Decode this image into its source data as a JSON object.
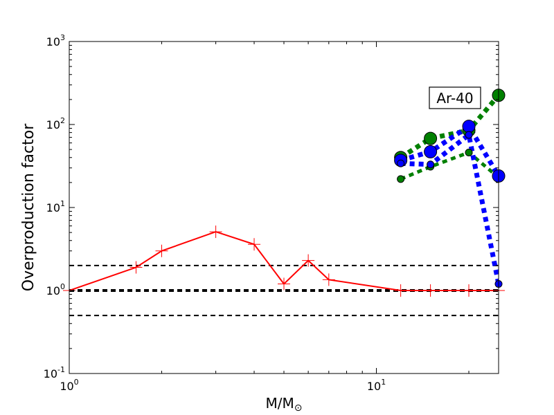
{
  "chart_data": {
    "type": "line",
    "xscale": "log",
    "yscale": "log",
    "xlim": [
      1,
      25
    ],
    "ylim": [
      0.1,
      1000
    ],
    "xlabel_main": "M/M",
    "xlabel_sub": "⊙",
    "ylabel": "Overproduction factor",
    "annotation": "Ar-40",
    "x_ticks": [
      {
        "value": 1,
        "base": "10",
        "exp": "0"
      },
      {
        "value": 10,
        "base": "10",
        "exp": "1"
      }
    ],
    "y_ticks": [
      {
        "value": 0.1,
        "base": "10",
        "exp": "-1"
      },
      {
        "value": 1,
        "base": "10",
        "exp": "0"
      },
      {
        "value": 10,
        "base": "10",
        "exp": "1"
      },
      {
        "value": 100,
        "base": "10",
        "exp": "2"
      },
      {
        "value": 1000,
        "base": "10",
        "exp": "3"
      }
    ],
    "reference_lines": [
      {
        "y": 2.0,
        "width": 2
      },
      {
        "y": 1.0,
        "width": 4
      },
      {
        "y": 0.5,
        "width": 2
      }
    ],
    "series": [
      {
        "color": "#ff0000",
        "style": "solid",
        "marker": "plus",
        "x": [
          1,
          1.65,
          2,
          3,
          4,
          5,
          6,
          7,
          12,
          15,
          20,
          25
        ],
        "y": [
          1.0,
          1.9,
          3.0,
          5.1,
          3.6,
          1.2,
          2.3,
          1.35,
          1.0,
          1.0,
          1.0,
          1.0
        ]
      },
      {
        "color": "#008000",
        "style": "dotted",
        "marker": "circle",
        "marker_size": "large",
        "stroke_width": 7,
        "x": [
          12,
          15,
          20,
          25
        ],
        "y": [
          40,
          68,
          85,
          225
        ]
      },
      {
        "color": "#008000",
        "style": "dotted",
        "marker": "circle",
        "marker_size": "small",
        "stroke_width": 5,
        "x": [
          12,
          15,
          20,
          25
        ],
        "y": [
          22,
          31,
          46,
          23
        ]
      },
      {
        "color": "#0000ff",
        "style": "dotted",
        "marker": "circle",
        "marker_size": "large",
        "stroke_width": 7,
        "x": [
          12,
          15,
          20,
          25
        ],
        "y": [
          37,
          47,
          95,
          24
        ]
      },
      {
        "color": "#0000ff",
        "style": "dotted",
        "marker": "circle",
        "marker_size": "small",
        "stroke_width": 7,
        "x": [
          12,
          15,
          20,
          25
        ],
        "y": [
          34,
          33,
          75,
          1.2
        ]
      }
    ]
  }
}
